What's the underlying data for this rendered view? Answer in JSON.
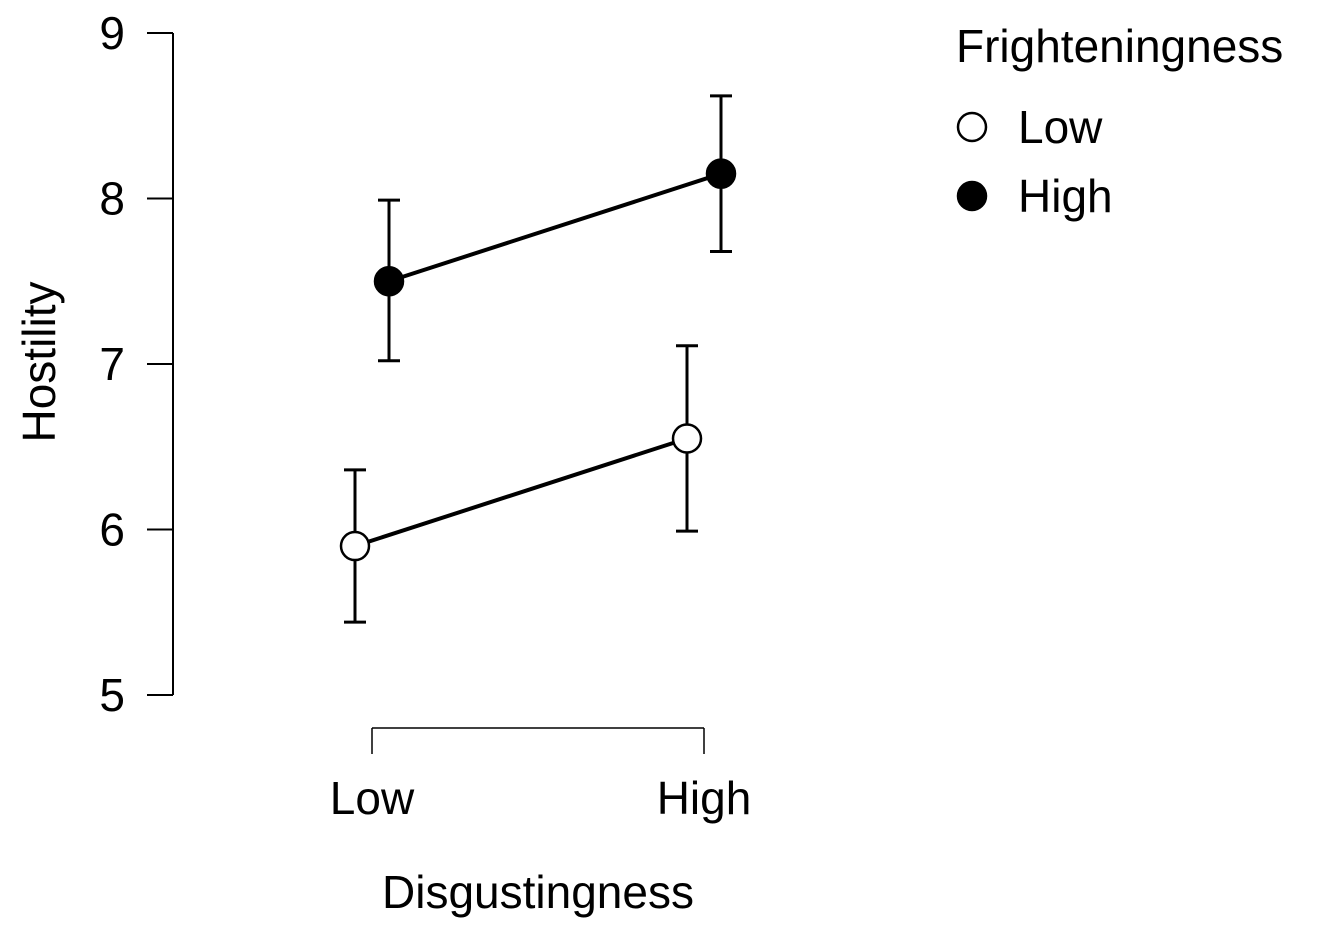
{
  "chart_data": {
    "type": "line",
    "title": "",
    "xlabel": "Disgustingness",
    "ylabel": "Hostility",
    "categories": [
      "Low",
      "High"
    ],
    "ylim": [
      5,
      9
    ],
    "yticks": [
      5,
      6,
      7,
      8,
      9
    ],
    "grid": false,
    "legend": {
      "title": "Frighteningness",
      "position": "top-right"
    },
    "series": [
      {
        "name": "Low",
        "marker": "open-circle",
        "values": [
          5.9,
          6.55
        ],
        "error_lower": [
          5.44,
          5.99
        ],
        "error_upper": [
          6.36,
          7.11
        ]
      },
      {
        "name": "High",
        "marker": "filled-circle",
        "values": [
          7.5,
          8.15
        ],
        "error_lower": [
          7.02,
          7.68
        ],
        "error_upper": [
          7.99,
          8.62
        ]
      }
    ],
    "colors": {
      "line": "#000000",
      "open_marker_fill": "#ffffff",
      "filled_marker_fill": "#000000"
    }
  }
}
